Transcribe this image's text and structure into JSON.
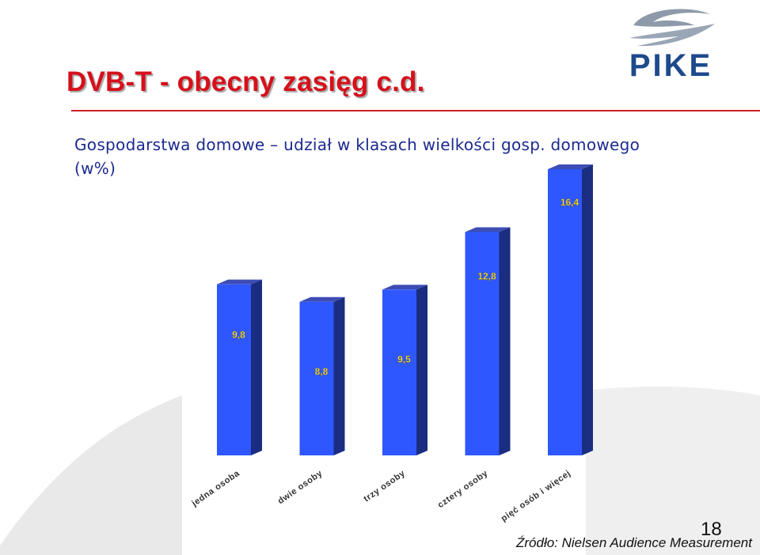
{
  "title": "DVB-T - obecny zasięg c.d.",
  "logo": {
    "text": "PIKE",
    "icon": "pike-swoosh-icon",
    "color": "#1e4a8c"
  },
  "colors": {
    "title": "#d6101b",
    "accent_line": "#cf1f27",
    "subtitle": "#1c2a8f",
    "bar_front": "#2f57ff",
    "bar_side": "#1a2d80",
    "bar_top": "#3d4db5",
    "value_label": "#ffe85a"
  },
  "chart_data": {
    "type": "bar",
    "title": "Gospodarstwa domowe – udział w klasach wielkości gosp. domowego (w%)",
    "categories": [
      "jedna osoba",
      "dwie osoby",
      "trzy osoby",
      "cztery osoby",
      "pięć osób i więcej"
    ],
    "values": [
      9.8,
      8.8,
      9.5,
      12.8,
      16.4
    ],
    "value_labels": [
      "9,8",
      "8,8",
      "9,5",
      "12,8",
      "16,4"
    ],
    "xlabel": "",
    "ylabel": "",
    "ylim": [
      0,
      16.4
    ],
    "grid": false,
    "legend": "none",
    "style": "3d-columns"
  },
  "footer": {
    "page_number": "18",
    "source": "Źródło: Nielsen Audience Measurement"
  }
}
